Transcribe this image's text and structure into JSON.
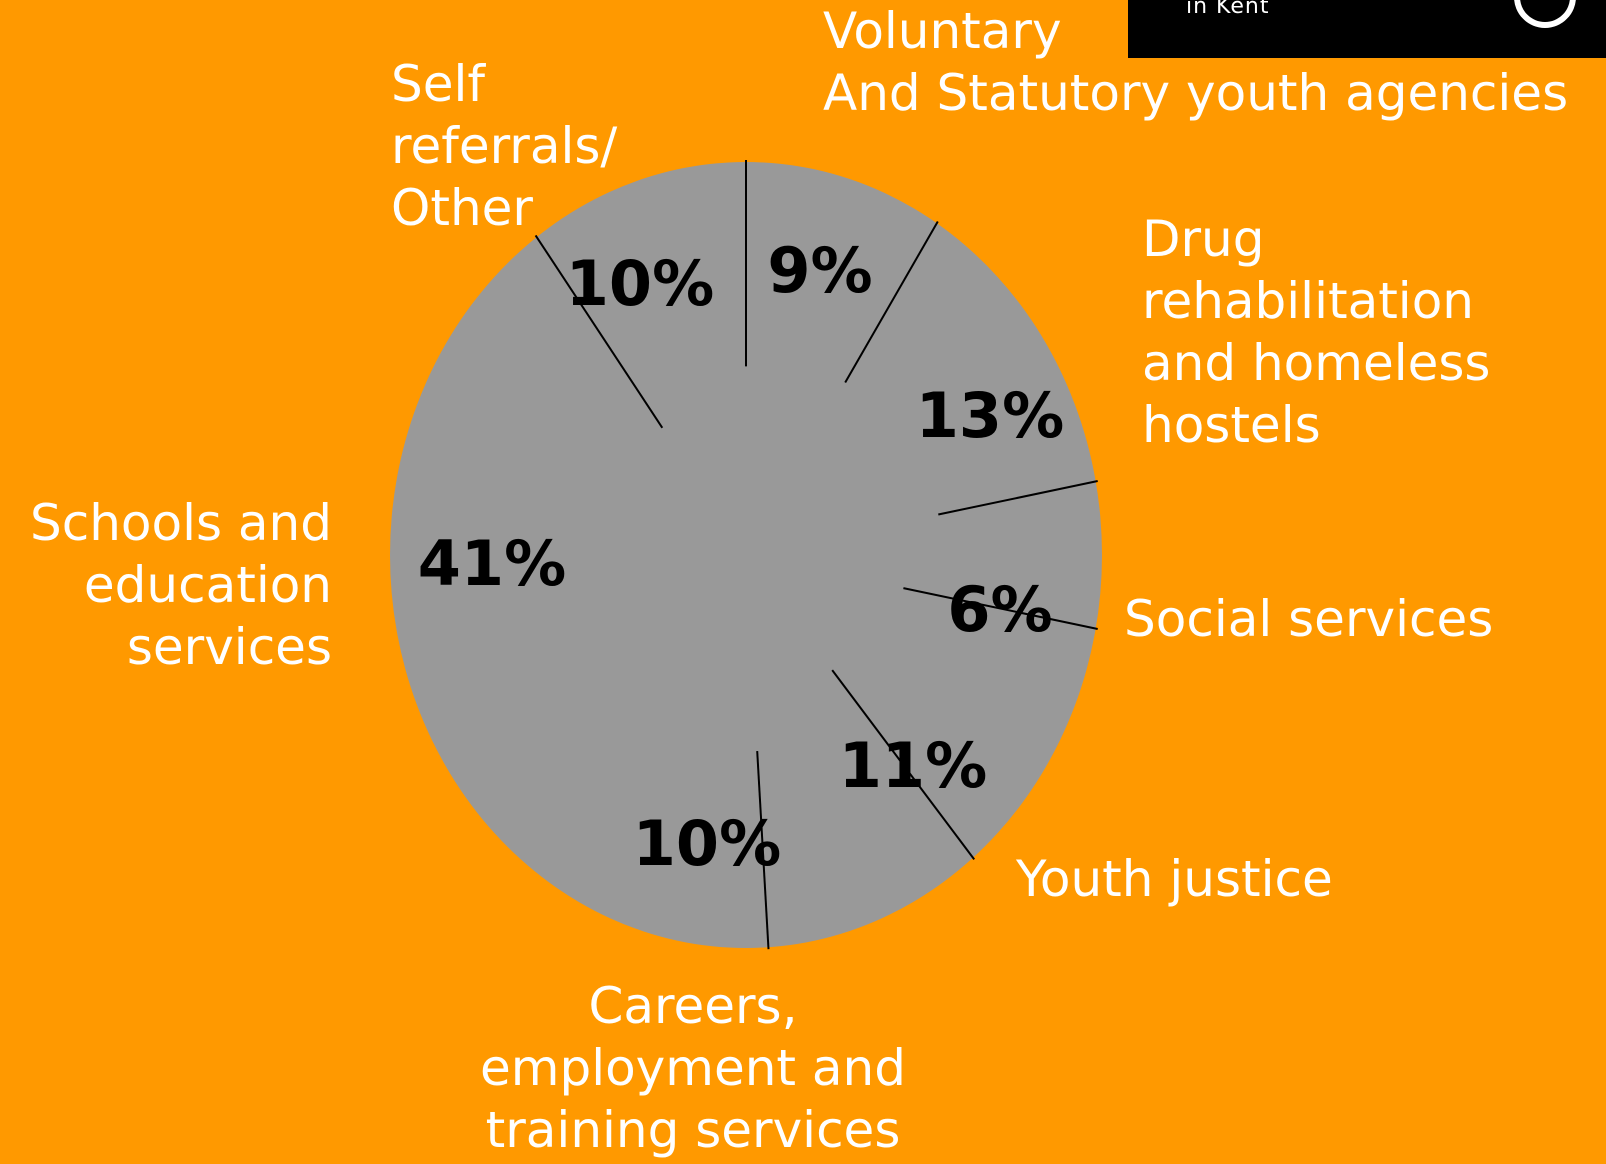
{
  "logo": {
    "text": "in Kent"
  },
  "colors": {
    "background": "#FF9900",
    "pie_fill": "#999999",
    "divider": "#000000",
    "category_label": "#FFFFFF",
    "value_label": "#000000"
  },
  "chart_data": {
    "type": "pie",
    "title": "",
    "slices": [
      {
        "label": "Voluntary And Statutory youth agencies",
        "label_lines": [
          "Voluntary",
          "And Statutory youth agencies"
        ],
        "value": 9,
        "value_label": "9%"
      },
      {
        "label": "Drug rehabilitation and homeless hostels",
        "label_lines": [
          "Drug",
          "rehabilitation",
          "and homeless",
          "hostels"
        ],
        "value": 13,
        "value_label": "13%"
      },
      {
        "label": "Social services",
        "label_lines": [
          "Social services"
        ],
        "value": 6,
        "value_label": "6%"
      },
      {
        "label": "Youth justice",
        "label_lines": [
          "Youth justice"
        ],
        "value": 11,
        "value_label": "11%"
      },
      {
        "label": "Careers, employment and training services",
        "label_lines": [
          "Careers,",
          "employment and",
          "training services"
        ],
        "value": 10,
        "value_label": "10%"
      },
      {
        "label": "Schools and education services",
        "label_lines": [
          "Schools and",
          "education",
          "services"
        ],
        "value": 41,
        "value_label": "41%"
      },
      {
        "label": "Self referrals/ Other",
        "label_lines": [
          "Self",
          "referrals/",
          "Other"
        ],
        "value": 10,
        "value_label": "10%"
      }
    ]
  }
}
